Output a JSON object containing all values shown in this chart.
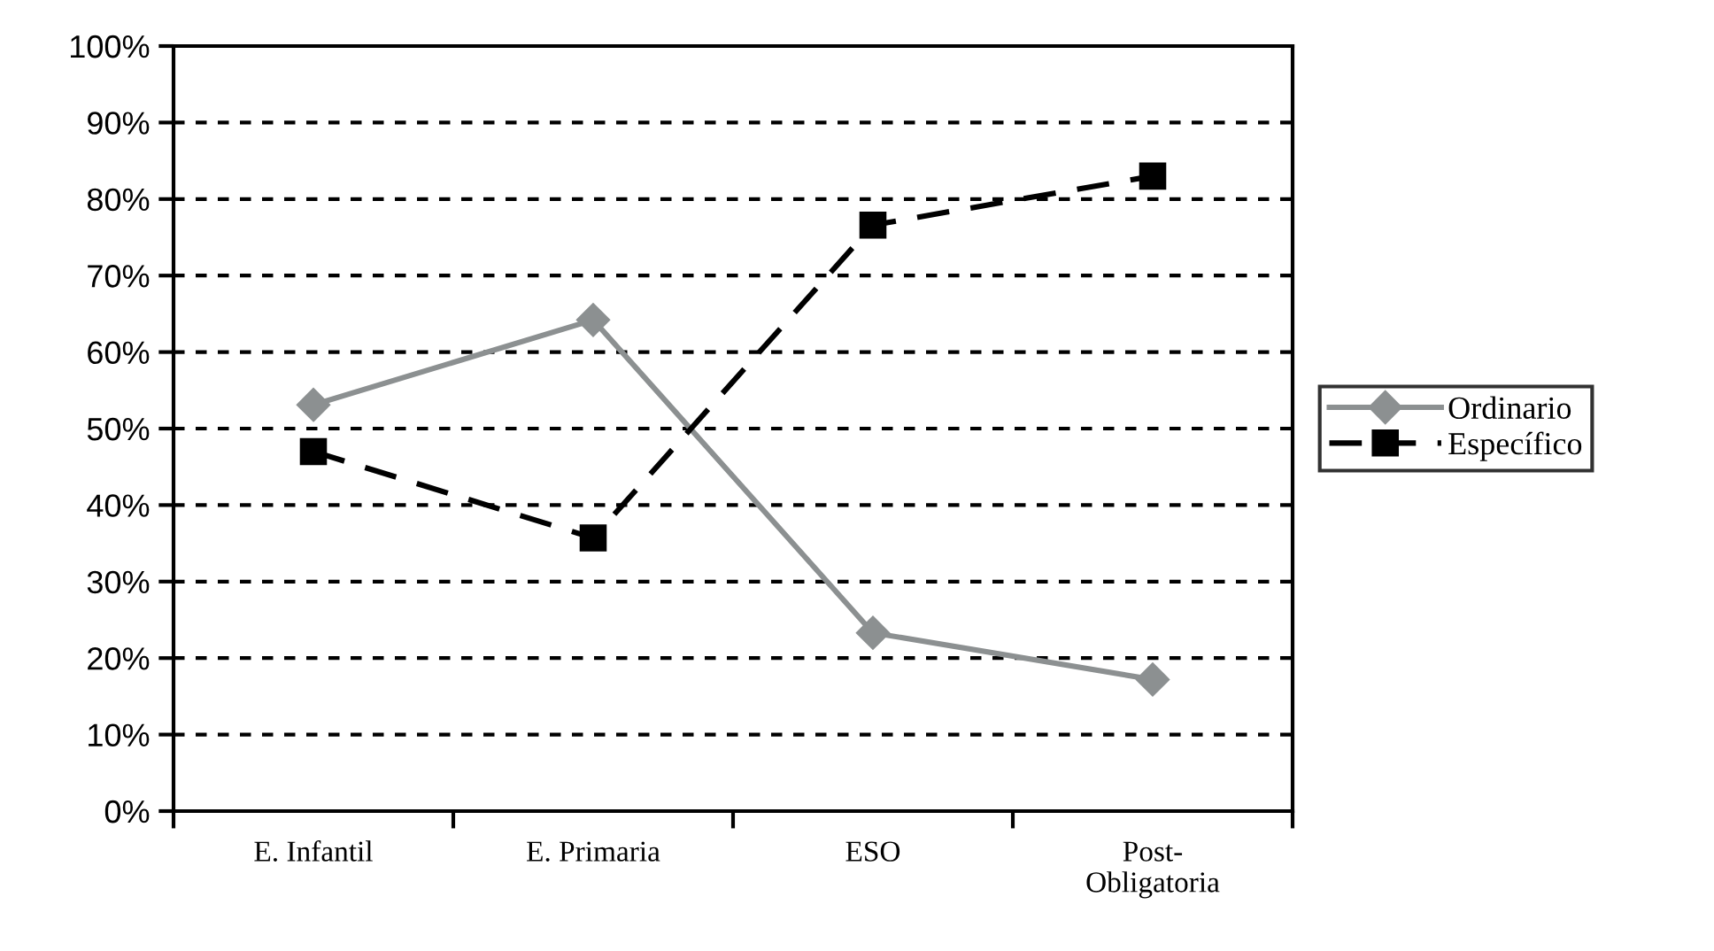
{
  "chart_data": {
    "type": "line",
    "categories": [
      "E. Infantil",
      "E. Primaria",
      "ESO",
      "Post-\nObligatoria"
    ],
    "series": [
      {
        "name": "Ordinario",
        "color": "#8c9091",
        "values": [
          53.1,
          64.2,
          23.3,
          17.2
        ],
        "marker": "diamond",
        "line_style": "solid"
      },
      {
        "name": "Específico",
        "color": "#000000",
        "values": [
          47.0,
          35.7,
          76.6,
          83.0
        ],
        "marker": "square",
        "line_style": "dashed"
      }
    ],
    "ylim": [
      0,
      100
    ],
    "yticks": [
      {
        "value": 0,
        "label": "0%"
      },
      {
        "value": 10,
        "label": "10%"
      },
      {
        "value": 20,
        "label": "20%"
      },
      {
        "value": 30,
        "label": "30%"
      },
      {
        "value": 40,
        "label": "40%"
      },
      {
        "value": 50,
        "label": "50%"
      },
      {
        "value": 60,
        "label": "60%"
      },
      {
        "value": 70,
        "label": "70%"
      },
      {
        "value": 80,
        "label": "80%"
      },
      {
        "value": 90,
        "label": "90%"
      },
      {
        "value": 100,
        "label": "100%"
      }
    ],
    "grid": "y",
    "legend": "right"
  }
}
